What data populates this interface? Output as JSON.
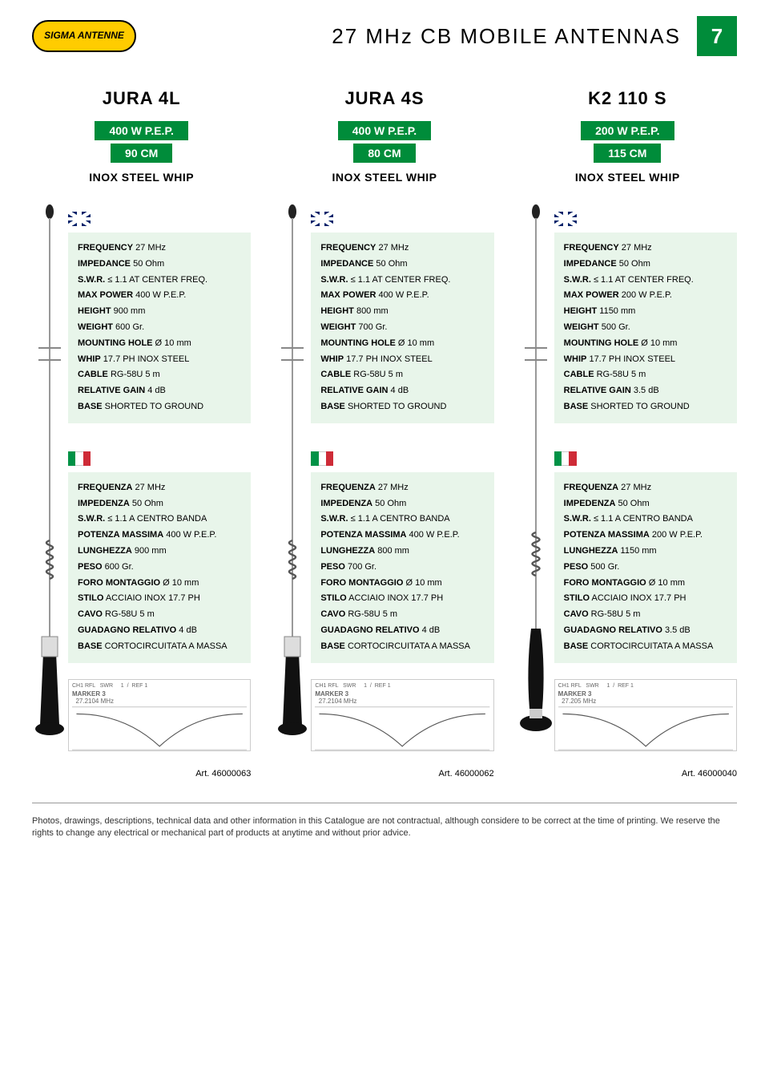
{
  "logo_text": "SIGMA ANTENNE",
  "page_title": "27 MHz CB MOBILE ANTENNAS",
  "page_number": "7",
  "subtitle_whip": "INOX STEEL WHIP",
  "footer": "Photos, drawings, descriptions, technical data and other information in this Catalogue are not contractual, although considere to be correct at the time of printing. We reserve the rights to change any electrical or mechanical part of products at anytime and without prior advice.",
  "products": [
    {
      "name": "JURA 4L",
      "power_badge": "400 W P.E.P.",
      "length_badge": "90 CM",
      "art": "Art. 46000063",
      "marker": "MARKER 3",
      "marker_freq": "27.2104 MHz",
      "specs_en": [
        {
          "label": "FREQUENCY",
          "value": "27 MHz"
        },
        {
          "label": "IMPEDANCE",
          "value": "50 Ohm"
        },
        {
          "label": "S.W.R.",
          "value": "≤ 1.1 AT CENTER FREQ."
        },
        {
          "label": "MAX POWER",
          "value": "400 W P.E.P."
        },
        {
          "label": "HEIGHT",
          "value": "900 mm"
        },
        {
          "label": "WEIGHT",
          "value": "600 Gr."
        },
        {
          "label": "MOUNTING HOLE",
          "value": "Ø 10 mm"
        },
        {
          "label": "WHIP",
          "value": "17.7 PH INOX STEEL"
        },
        {
          "label": "CABLE",
          "value": "RG-58U 5 m"
        },
        {
          "label": "RELATIVE GAIN",
          "value": "4 dB"
        },
        {
          "label": "BASE",
          "value": "SHORTED TO GROUND"
        }
      ],
      "specs_it": [
        {
          "label": "FREQUENZA",
          "value": "27 MHz"
        },
        {
          "label": "IMPEDENZA",
          "value": "50 Ohm"
        },
        {
          "label": "S.W.R.",
          "value": "≤ 1.1 A CENTRO BANDA"
        },
        {
          "label": "POTENZA MASSIMA",
          "value": "400 W P.E.P."
        },
        {
          "label": "LUNGHEZZA",
          "value": "900 mm"
        },
        {
          "label": "PESO",
          "value": "600 Gr."
        },
        {
          "label": "FORO MONTAGGIO",
          "value": "Ø 10 mm"
        },
        {
          "label": "STILO",
          "value": "ACCIAIO INOX 17.7 PH"
        },
        {
          "label": "CAVO",
          "value": "RG-58U 5 m"
        },
        {
          "label": "GUADAGNO RELATIVO",
          "value": "4 dB"
        },
        {
          "label": "BASE",
          "value": "CORTOCIRCUITATA A MASSA"
        }
      ]
    },
    {
      "name": "JURA 4S",
      "power_badge": "400 W P.E.P.",
      "length_badge": "80 CM",
      "art": "Art. 46000062",
      "marker": "MARKER 3",
      "marker_freq": "27.2104 MHz",
      "specs_en": [
        {
          "label": "FREQUENCY",
          "value": "27 MHz"
        },
        {
          "label": "IMPEDANCE",
          "value": "50 Ohm"
        },
        {
          "label": "S.W.R.",
          "value": "≤ 1.1 AT CENTER FREQ."
        },
        {
          "label": "MAX POWER",
          "value": "400 W P.E.P."
        },
        {
          "label": "HEIGHT",
          "value": "800 mm"
        },
        {
          "label": "WEIGHT",
          "value": "700 Gr."
        },
        {
          "label": "MOUNTING HOLE",
          "value": "Ø 10 mm"
        },
        {
          "label": "WHIP",
          "value": "17.7 PH INOX STEEL"
        },
        {
          "label": "CABLE",
          "value": "RG-58U 5 m"
        },
        {
          "label": "RELATIVE GAIN",
          "value": "4 dB"
        },
        {
          "label": "BASE",
          "value": "SHORTED TO GROUND"
        }
      ],
      "specs_it": [
        {
          "label": "FREQUENZA",
          "value": "27 MHz"
        },
        {
          "label": "IMPEDENZA",
          "value": "50 Ohm"
        },
        {
          "label": "S.W.R.",
          "value": "≤ 1.1 A CENTRO BANDA"
        },
        {
          "label": "POTENZA MASSIMA",
          "value": "400 W P.E.P."
        },
        {
          "label": "LUNGHEZZA",
          "value": "800 mm"
        },
        {
          "label": "PESO",
          "value": "700 Gr."
        },
        {
          "label": "FORO MONTAGGIO",
          "value": "Ø 10 mm"
        },
        {
          "label": "STILO",
          "value": "ACCIAIO INOX 17.7 PH"
        },
        {
          "label": "CAVO",
          "value": "RG-58U 5 m"
        },
        {
          "label": "GUADAGNO RELATIVO",
          "value": "4 dB"
        },
        {
          "label": "BASE",
          "value": "CORTOCIRCUITATA A MASSA"
        }
      ]
    },
    {
      "name": "K2 110 S",
      "power_badge": "200 W P.E.P.",
      "length_badge": "115 CM",
      "art": "Art. 46000040",
      "marker": "MARKER 3",
      "marker_freq": "27.205 MHz",
      "specs_en": [
        {
          "label": "FREQUENCY",
          "value": "27 MHz"
        },
        {
          "label": "IMPEDANCE",
          "value": "50 Ohm"
        },
        {
          "label": "S.W.R.",
          "value": "≤ 1.1 AT CENTER FREQ."
        },
        {
          "label": "MAX POWER",
          "value": "200 W P.E.P."
        },
        {
          "label": "HEIGHT",
          "value": "1150 mm"
        },
        {
          "label": "WEIGHT",
          "value": "500 Gr."
        },
        {
          "label": "MOUNTING HOLE",
          "value": "Ø 10 mm"
        },
        {
          "label": "WHIP",
          "value": "17.7 PH INOX STEEL"
        },
        {
          "label": "CABLE",
          "value": "RG-58U 5 m"
        },
        {
          "label": "RELATIVE GAIN",
          "value": "3.5 dB"
        },
        {
          "label": "BASE",
          "value": "SHORTED TO GROUND"
        }
      ],
      "specs_it": [
        {
          "label": "FREQUENZA",
          "value": "27 MHz"
        },
        {
          "label": "IMPEDENZA",
          "value": "50 Ohm"
        },
        {
          "label": "S.W.R.",
          "value": "≤ 1.1 A CENTRO BANDA"
        },
        {
          "label": "POTENZA MASSIMA",
          "value": "200 W P.E.P."
        },
        {
          "label": "LUNGHEZZA",
          "value": "1150 mm"
        },
        {
          "label": "PESO",
          "value": "500 Gr."
        },
        {
          "label": "FORO MONTAGGIO",
          "value": "Ø 10 mm"
        },
        {
          "label": "STILO",
          "value": "ACCIAIO INOX 17.7 PH"
        },
        {
          "label": "CAVO",
          "value": "RG-58U 5 m"
        },
        {
          "label": "GUADAGNO RELATIVO",
          "value": "3.5 dB"
        },
        {
          "label": "BASE",
          "value": "CORTOCIRCUITATA A MASSA"
        }
      ]
    }
  ],
  "colors": {
    "brand_green": "#008c3a",
    "brand_yellow": "#ffcc00",
    "spec_bg": "#e8f5ea"
  }
}
